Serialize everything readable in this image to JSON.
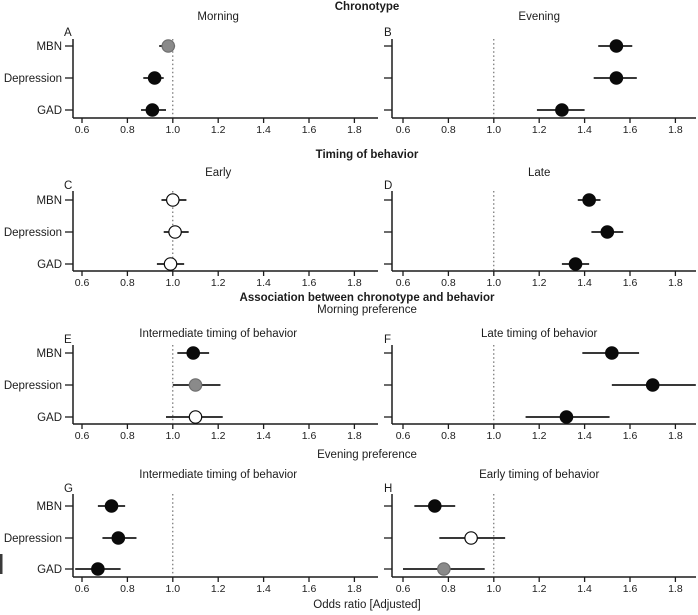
{
  "figure": {
    "sections": {
      "row1": "Chronotype",
      "row2": "Timing of behavior",
      "row3_main": "Association between chronotype and behavior",
      "row3_sub": "Morning preference",
      "row4_sub": "Evening preference"
    }
  },
  "chart_data": {
    "type": "scatter",
    "subtype": "forest-plot",
    "xlabel": "Odds ratio [Adjusted]",
    "x_ticks": [
      0.6,
      0.8,
      1.0,
      1.2,
      1.4,
      1.6,
      1.8
    ],
    "x_range": [
      0.55,
      1.9
    ],
    "reference_line": 1.0,
    "y_categories": [
      "MBN",
      "Depression",
      "GAD"
    ],
    "legend": "none",
    "grid": false,
    "colors": {
      "black": "#0a0a0a",
      "gray": "#8a8a8a",
      "white": "#ffffff",
      "axis": "#1c1c1c",
      "ref_line": "#555555"
    },
    "panels": [
      {
        "letter": "A",
        "section": "Chronotype",
        "title": "Morning",
        "side": "left",
        "row": 0,
        "points": [
          {
            "label": "MBN",
            "or": 0.98,
            "ci": [
              0.94,
              1.01
            ],
            "fill": "gray"
          },
          {
            "label": "Depression",
            "or": 0.92,
            "ci": [
              0.87,
              0.96
            ],
            "fill": "black"
          },
          {
            "label": "GAD",
            "or": 0.91,
            "ci": [
              0.86,
              0.97
            ],
            "fill": "black"
          }
        ]
      },
      {
        "letter": "B",
        "section": "Chronotype",
        "title": "Evening",
        "side": "right",
        "row": 0,
        "points": [
          {
            "label": "MBN",
            "or": 1.54,
            "ci": [
              1.46,
              1.61
            ],
            "fill": "black"
          },
          {
            "label": "Depression",
            "or": 1.54,
            "ci": [
              1.44,
              1.63
            ],
            "fill": "black"
          },
          {
            "label": "GAD",
            "or": 1.3,
            "ci": [
              1.19,
              1.4
            ],
            "fill": "black"
          }
        ]
      },
      {
        "letter": "C",
        "section": "Timing of behavior",
        "title": "Early",
        "side": "left",
        "row": 1,
        "points": [
          {
            "label": "MBN",
            "or": 1.0,
            "ci": [
              0.95,
              1.06
            ],
            "fill": "white"
          },
          {
            "label": "Depression",
            "or": 1.01,
            "ci": [
              0.96,
              1.07
            ],
            "fill": "white"
          },
          {
            "label": "GAD",
            "or": 0.99,
            "ci": [
              0.93,
              1.05
            ],
            "fill": "white"
          }
        ]
      },
      {
        "letter": "D",
        "section": "Timing of behavior",
        "title": "Late",
        "side": "right",
        "row": 1,
        "points": [
          {
            "label": "MBN",
            "or": 1.42,
            "ci": [
              1.37,
              1.47
            ],
            "fill": "black"
          },
          {
            "label": "Depression",
            "or": 1.5,
            "ci": [
              1.43,
              1.57
            ],
            "fill": "black"
          },
          {
            "label": "GAD",
            "or": 1.36,
            "ci": [
              1.3,
              1.42
            ],
            "fill": "black"
          }
        ]
      },
      {
        "letter": "E",
        "section": "Association between chronotype and behavior / Morning preference",
        "title": "Intermediate timing of behavior",
        "side": "left",
        "row": 2,
        "points": [
          {
            "label": "MBN",
            "or": 1.09,
            "ci": [
              1.02,
              1.16
            ],
            "fill": "black"
          },
          {
            "label": "Depression",
            "or": 1.1,
            "ci": [
              1.0,
              1.21
            ],
            "fill": "gray"
          },
          {
            "label": "GAD",
            "or": 1.1,
            "ci": [
              0.97,
              1.22
            ],
            "fill": "white"
          }
        ]
      },
      {
        "letter": "F",
        "section": "Association between chronotype and behavior / Morning preference",
        "title": "Late timing of behavior",
        "side": "right",
        "row": 2,
        "points": [
          {
            "label": "MBN",
            "or": 1.52,
            "ci": [
              1.39,
              1.64
            ],
            "fill": "black"
          },
          {
            "label": "Depression",
            "or": 1.7,
            "ci": [
              1.52,
              1.89
            ],
            "fill": "black"
          },
          {
            "label": "GAD",
            "or": 1.32,
            "ci": [
              1.14,
              1.51
            ],
            "fill": "black"
          }
        ]
      },
      {
        "letter": "G",
        "section": "Evening preference",
        "title": "Intermediate timing of behavior",
        "side": "left",
        "row": 3,
        "points": [
          {
            "label": "MBN",
            "or": 0.73,
            "ci": [
              0.67,
              0.79
            ],
            "fill": "black"
          },
          {
            "label": "Depression",
            "or": 0.76,
            "ci": [
              0.69,
              0.84
            ],
            "fill": "black"
          },
          {
            "label": "GAD",
            "or": 0.67,
            "ci": [
              0.57,
              0.77
            ],
            "fill": "black"
          }
        ]
      },
      {
        "letter": "H",
        "section": "Evening preference",
        "title": "Early timing of behavior",
        "side": "right",
        "row": 3,
        "points": [
          {
            "label": "MBN",
            "or": 0.74,
            "ci": [
              0.65,
              0.83
            ],
            "fill": "black"
          },
          {
            "label": "Depression",
            "or": 0.9,
            "ci": [
              0.76,
              1.05
            ],
            "fill": "white"
          },
          {
            "label": "GAD",
            "or": 0.78,
            "ci": [
              0.6,
              0.96
            ],
            "fill": "gray"
          }
        ]
      }
    ]
  }
}
